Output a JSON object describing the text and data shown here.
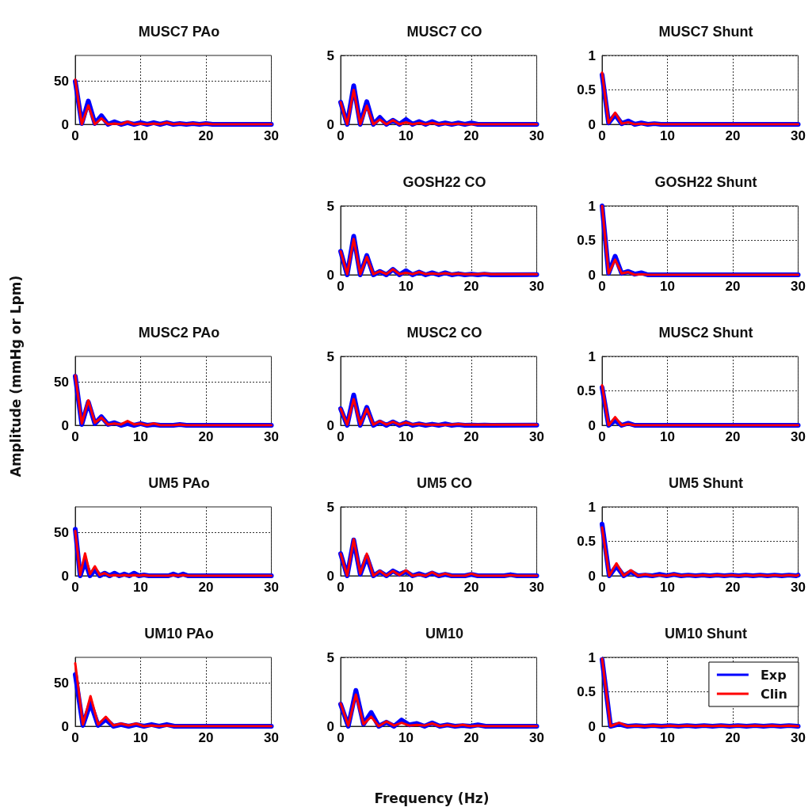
{
  "chart_data": [
    {
      "type": "line",
      "title": "MUSC7 PAo",
      "x": [
        0,
        1,
        2,
        3,
        4,
        5,
        6,
        7,
        8,
        9,
        10,
        11,
        12,
        13,
        14,
        15,
        16,
        17,
        18,
        19,
        20,
        21,
        30
      ],
      "series": [
        {
          "color": "#0000ff",
          "values": [
            50,
            1,
            27,
            1,
            10,
            0,
            3,
            0,
            2,
            0,
            2,
            0,
            2,
            0,
            2,
            0,
            1,
            0,
            1,
            0,
            1,
            0,
            0
          ]
        },
        {
          "color": "#ff0000",
          "values": [
            52,
            0,
            22,
            0,
            7,
            0,
            1,
            0,
            3,
            0,
            1,
            0,
            1,
            0,
            2,
            0,
            1,
            0,
            1,
            0,
            1,
            0,
            0
          ]
        }
      ],
      "xlim": [
        0,
        30
      ],
      "xticks": [
        0,
        10,
        20,
        30
      ],
      "ylim": [
        0,
        80
      ],
      "yticks": [
        0,
        50
      ],
      "grid": true
    },
    {
      "type": "line",
      "title": "MUSC7 CO",
      "x": [
        0,
        1,
        2,
        3,
        4,
        5,
        6,
        7,
        8,
        9,
        10,
        11,
        12,
        13,
        14,
        15,
        16,
        17,
        18,
        19,
        20,
        21,
        30
      ],
      "series": [
        {
          "color": "#0000ff",
          "values": [
            1.6,
            0,
            2.8,
            0,
            1.65,
            0,
            0.5,
            0,
            0.3,
            0,
            0.35,
            0,
            0.2,
            0,
            0.2,
            0,
            0.1,
            0,
            0.1,
            0,
            0.1,
            0,
            0
          ]
        },
        {
          "color": "#ff0000",
          "values": [
            1.6,
            0,
            2.5,
            0,
            1.35,
            0,
            0.35,
            0,
            0.3,
            0,
            0.15,
            0,
            0.1,
            0,
            0.1,
            0,
            0.05,
            0,
            0.05,
            0,
            0,
            0,
            0
          ]
        }
      ],
      "xlim": [
        0,
        30
      ],
      "xticks": [
        0,
        10,
        20,
        30
      ],
      "ylim": [
        0,
        5
      ],
      "yticks": [
        0,
        5
      ],
      "grid": true
    },
    {
      "type": "line",
      "title": "MUSC7 Shunt",
      "x": [
        0,
        1,
        2,
        3,
        4,
        5,
        6,
        7,
        8,
        9,
        10,
        30
      ],
      "series": [
        {
          "color": "#0000ff",
          "values": [
            0.72,
            0.02,
            0.14,
            0.01,
            0.05,
            0,
            0.02,
            0,
            0.01,
            0,
            0,
            0
          ]
        },
        {
          "color": "#ff0000",
          "values": [
            0.75,
            0.02,
            0.17,
            0.01,
            0.03,
            0,
            0.01,
            0,
            0.01,
            0,
            0,
            0
          ]
        }
      ],
      "xlim": [
        0,
        30
      ],
      "xticks": [
        0,
        10,
        20,
        30
      ],
      "ylim": [
        0,
        1
      ],
      "yticks": [
        0,
        0.5,
        1
      ],
      "grid": true
    },
    {
      "type": "line",
      "title": "GOSH22 CO",
      "x": [
        0,
        1,
        2,
        3,
        4,
        5,
        6,
        7,
        8,
        9,
        10,
        11,
        12,
        13,
        14,
        15,
        16,
        17,
        18,
        19,
        20,
        21,
        22,
        23,
        30
      ],
      "series": [
        {
          "color": "#0000ff",
          "values": [
            1.7,
            0,
            2.8,
            0,
            1.4,
            0,
            0.25,
            0,
            0.4,
            0,
            0.3,
            0,
            0.2,
            0,
            0.15,
            0,
            0.15,
            0,
            0.08,
            0,
            0.05,
            0,
            0.05,
            0,
            0.02
          ]
        },
        {
          "color": "#ff0000",
          "values": [
            1.7,
            0.05,
            2.6,
            0.05,
            1.3,
            0.05,
            0.25,
            0.05,
            0.4,
            0.05,
            0.15,
            0.05,
            0.2,
            0.05,
            0.1,
            0.05,
            0.12,
            0.05,
            0.08,
            0.05,
            0.05,
            0.05,
            0.08,
            0.05,
            0.05
          ]
        }
      ],
      "xlim": [
        0,
        30
      ],
      "xticks": [
        0,
        10,
        20,
        30
      ],
      "ylim": [
        0,
        5
      ],
      "yticks": [
        0,
        5
      ],
      "grid": true
    },
    {
      "type": "line",
      "title": "GOSH22 Shunt",
      "x": [
        0,
        1,
        2,
        3,
        4,
        5,
        6,
        7,
        8,
        30
      ],
      "series": [
        {
          "color": "#0000ff",
          "values": [
            1,
            0.02,
            0.27,
            0.02,
            0.05,
            0.01,
            0.03,
            0,
            0,
            0
          ]
        },
        {
          "color": "#ff0000",
          "values": [
            1,
            0.02,
            0.22,
            0.02,
            0.04,
            0,
            0.01,
            0,
            0,
            0
          ]
        }
      ],
      "xlim": [
        0,
        30
      ],
      "xticks": [
        0,
        10,
        20,
        30
      ],
      "ylim": [
        0,
        1
      ],
      "yticks": [
        0,
        0.5,
        1
      ],
      "grid": true
    },
    {
      "type": "line",
      "title": "MUSC2 PAo",
      "ylabel": "Amplitude (mmHg or Lpm)",
      "x": [
        0,
        1,
        2,
        3,
        4,
        5,
        6,
        7,
        8,
        9,
        10,
        11,
        12,
        13,
        14,
        15,
        16,
        17,
        30
      ],
      "series": [
        {
          "color": "#0000ff",
          "values": [
            57,
            1,
            27,
            2,
            10,
            1,
            3,
            0,
            2,
            0,
            2,
            0,
            1,
            0,
            0,
            0,
            1,
            0,
            0
          ]
        },
        {
          "color": "#ff0000",
          "values": [
            58,
            2,
            29,
            3,
            9,
            1,
            2,
            1,
            5,
            1,
            2,
            0,
            2,
            0,
            0,
            0,
            1,
            0,
            0
          ]
        }
      ],
      "xlim": [
        0,
        30
      ],
      "xticks": [
        0,
        10,
        20,
        30
      ],
      "ylim": [
        0,
        80
      ],
      "yticks": [
        0,
        50
      ],
      "grid": true
    },
    {
      "type": "line",
      "title": "MUSC2 CO",
      "x": [
        0,
        1,
        2,
        3,
        4,
        5,
        6,
        7,
        8,
        9,
        10,
        11,
        12,
        13,
        14,
        15,
        16,
        17,
        18,
        19,
        20,
        21,
        22,
        23,
        30
      ],
      "series": [
        {
          "color": "#0000ff",
          "values": [
            1.2,
            0,
            2.2,
            0,
            1.3,
            0,
            0.25,
            0,
            0.25,
            0,
            0.2,
            0,
            0.1,
            0,
            0.08,
            0,
            0.1,
            0,
            0.05,
            0,
            0.02,
            0,
            0.02,
            0,
            0.02
          ]
        },
        {
          "color": "#ff0000",
          "values": [
            1.2,
            0.05,
            1.9,
            0.05,
            1.2,
            0.05,
            0.3,
            0.05,
            0.25,
            0.05,
            0.2,
            0.05,
            0.1,
            0.05,
            0.05,
            0.05,
            0.05,
            0.05,
            0.08,
            0.05,
            0.05,
            0.05,
            0.05,
            0.05,
            0.05
          ]
        }
      ],
      "xlim": [
        0,
        30
      ],
      "xticks": [
        0,
        10,
        20,
        30
      ],
      "ylim": [
        0,
        5
      ],
      "yticks": [
        0,
        5
      ],
      "grid": true
    },
    {
      "type": "line",
      "title": "MUSC2 Shunt",
      "x": [
        0,
        1,
        2,
        3,
        4,
        5,
        6,
        30
      ],
      "series": [
        {
          "color": "#0000ff",
          "values": [
            0.55,
            0,
            0.07,
            0,
            0.03,
            0,
            0,
            0
          ]
        },
        {
          "color": "#ff0000",
          "values": [
            0.58,
            0,
            0.12,
            0,
            0.02,
            0,
            0,
            0
          ]
        }
      ],
      "xlim": [
        0,
        30
      ],
      "xticks": [
        0,
        10,
        20,
        30
      ],
      "ylim": [
        0,
        1
      ],
      "yticks": [
        0,
        0.5,
        1
      ],
      "grid": true
    },
    {
      "type": "line",
      "title": "UM5 PAo",
      "x": [
        0,
        0.75,
        1.5,
        2.25,
        3,
        3.75,
        4.5,
        5.25,
        6,
        6.75,
        7.5,
        8.25,
        9,
        9.75,
        10.5,
        11.25,
        12,
        12.75,
        13.5,
        14.25,
        15,
        15.75,
        16.5,
        17.25,
        30
      ],
      "series": [
        {
          "color": "#0000ff",
          "values": [
            54,
            0,
            17,
            0,
            7,
            0,
            3,
            0,
            3,
            0,
            2,
            0,
            3,
            0,
            1,
            0,
            0,
            0,
            0,
            0,
            2,
            0,
            2,
            0,
            0
          ]
        },
        {
          "color": "#ff0000",
          "values": [
            52,
            1,
            26,
            2,
            11,
            1,
            3,
            0,
            1,
            0,
            1,
            0,
            1,
            0,
            1,
            0,
            0,
            0,
            0,
            0,
            1,
            0,
            1,
            0,
            0
          ]
        }
      ],
      "xlim": [
        0,
        30
      ],
      "xticks": [
        0,
        10,
        20,
        30
      ],
      "ylim": [
        0,
        80
      ],
      "yticks": [
        0,
        50
      ],
      "grid": true
    },
    {
      "type": "line",
      "title": "UM5 CO",
      "x": [
        0,
        1,
        2,
        3,
        4,
        5,
        6,
        7,
        8,
        9,
        10,
        11,
        12,
        13,
        14,
        15,
        16,
        17,
        18,
        19,
        20,
        21,
        22,
        23,
        24,
        25,
        26,
        27,
        30
      ],
      "series": [
        {
          "color": "#0000ff",
          "values": [
            1.6,
            0,
            2.6,
            0.1,
            1.4,
            0,
            0.3,
            0,
            0.35,
            0.1,
            0.3,
            0,
            0.15,
            0,
            0.2,
            0,
            0.1,
            0,
            0,
            0,
            0.1,
            0,
            0,
            0,
            0,
            0,
            0.08,
            0,
            0
          ]
        },
        {
          "color": "#ff0000",
          "values": [
            1.6,
            0,
            2.65,
            0.15,
            1.6,
            0,
            0.35,
            0,
            0.35,
            0.05,
            0.4,
            0,
            0.1,
            0,
            0.25,
            0,
            0.15,
            0,
            0,
            0,
            0.15,
            0,
            0,
            0,
            0,
            0,
            0.05,
            0,
            0
          ]
        }
      ],
      "xlim": [
        0,
        30
      ],
      "xticks": [
        0,
        10,
        20,
        30
      ],
      "ylim": [
        0,
        5
      ],
      "yticks": [
        0,
        5
      ],
      "grid": true
    },
    {
      "type": "line",
      "title": "UM5 Shunt",
      "x": [
        0,
        1.1,
        2.2,
        3.3,
        4.4,
        5.5,
        6.6,
        7.7,
        8.8,
        9.9,
        11,
        12.1,
        13.2,
        14.3,
        15.4,
        16.5,
        17.6,
        18.7,
        19.8,
        20.9,
        22,
        23.1,
        24.2,
        25.3,
        26.4,
        27.5,
        28.6,
        29.7,
        30
      ],
      "series": [
        {
          "color": "#0000ff",
          "values": [
            0.75,
            0,
            0.14,
            0,
            0.06,
            0,
            0.01,
            0,
            0.02,
            0,
            0.02,
            0,
            0.01,
            0,
            0.01,
            0,
            0.01,
            0,
            0.01,
            0,
            0.01,
            0,
            0.01,
            0,
            0.01,
            0,
            0.01,
            0,
            0.01
          ]
        },
        {
          "color": "#ff0000",
          "values": [
            0.7,
            0,
            0.18,
            0,
            0.08,
            0,
            0.02,
            0,
            0.01,
            0,
            0.02,
            0,
            0.01,
            0,
            0.01,
            0,
            0.01,
            0,
            0.01,
            0,
            0.01,
            0,
            0.01,
            0,
            0.01,
            0,
            0.01,
            0,
            0.01
          ]
        }
      ],
      "xlim": [
        0,
        30
      ],
      "xticks": [
        0,
        10,
        20,
        30
      ],
      "ylim": [
        0,
        1
      ],
      "yticks": [
        0,
        0.5,
        1
      ],
      "grid": true
    },
    {
      "type": "line",
      "title": "UM10 PAo",
      "x": [
        0,
        1.17,
        2.33,
        3.5,
        4.67,
        5.83,
        7,
        8.17,
        9.33,
        10.5,
        11.67,
        12.83,
        14,
        15.17,
        30
      ],
      "series": [
        {
          "color": "#0000ff",
          "values": [
            60,
            1,
            27,
            1,
            8,
            0,
            2,
            0,
            2,
            0,
            2,
            0,
            2,
            0,
            0
          ]
        },
        {
          "color": "#ff0000",
          "values": [
            73,
            2,
            35,
            2,
            11,
            1,
            3,
            1,
            3,
            0,
            1,
            0,
            1,
            0,
            0
          ]
        }
      ],
      "xlim": [
        0,
        30
      ],
      "xticks": [
        0,
        10,
        20,
        30
      ],
      "ylim": [
        0,
        80
      ],
      "yticks": [
        0,
        50
      ],
      "grid": true
    },
    {
      "type": "line",
      "title": "UM10",
      "xlabel": "Frequency (Hz)",
      "x": [
        0,
        1.17,
        2.33,
        3.5,
        4.67,
        5.83,
        7,
        8.17,
        9.33,
        10.5,
        11.67,
        12.83,
        14,
        15.17,
        16.33,
        17.5,
        18.67,
        19.83,
        21,
        22.17,
        30
      ],
      "series": [
        {
          "color": "#0000ff",
          "values": [
            1.6,
            0,
            2.6,
            0.15,
            1,
            0,
            0.3,
            0,
            0.45,
            0.1,
            0.2,
            0,
            0.25,
            0,
            0.1,
            0,
            0.05,
            0,
            0.1,
            0,
            0
          ]
        },
        {
          "color": "#ff0000",
          "values": [
            1.65,
            0.05,
            2.3,
            0.15,
            0.7,
            0,
            0.35,
            0.05,
            0.25,
            0.05,
            0.1,
            0.05,
            0.2,
            0,
            0.1,
            0,
            0.1,
            0,
            0.05,
            0,
            0
          ]
        }
      ],
      "xlim": [
        0,
        30
      ],
      "xticks": [
        0,
        10,
        20,
        30
      ],
      "ylim": [
        0,
        5
      ],
      "yticks": [
        0,
        5
      ],
      "grid": true
    },
    {
      "type": "line",
      "title": "UM10 Shunt",
      "x": [
        0,
        1.3,
        2.6,
        3.9,
        5.2,
        6.5,
        7.8,
        9.1,
        10.4,
        11.7,
        13,
        14.3,
        15.6,
        16.9,
        18.2,
        19.5,
        20.8,
        22.1,
        23.4,
        24.7,
        26,
        27.3,
        28.6,
        29.9,
        30
      ],
      "series": [
        {
          "name": "Exp",
          "color": "#0000ff",
          "values": [
            0.97,
            0,
            0.03,
            0,
            0.01,
            0,
            0.01,
            0,
            0.01,
            0,
            0.01,
            0,
            0.01,
            0,
            0.01,
            0,
            0.01,
            0,
            0.01,
            0,
            0.01,
            0,
            0.01,
            0,
            0
          ]
        },
        {
          "name": "Clin",
          "color": "#ff0000",
          "values": [
            0.98,
            0,
            0.05,
            0,
            0.01,
            0,
            0.01,
            0,
            0.01,
            0,
            0.01,
            0,
            0.01,
            0,
            0.01,
            0,
            0.01,
            0,
            0.01,
            0,
            0.01,
            0,
            0.01,
            0,
            0
          ]
        }
      ],
      "xlim": [
        0,
        30
      ],
      "xticks": [
        0,
        10,
        20,
        30
      ],
      "ylim": [
        0,
        1
      ],
      "yticks": [
        0,
        0.5,
        1
      ],
      "grid": true,
      "legend": "top right"
    }
  ]
}
